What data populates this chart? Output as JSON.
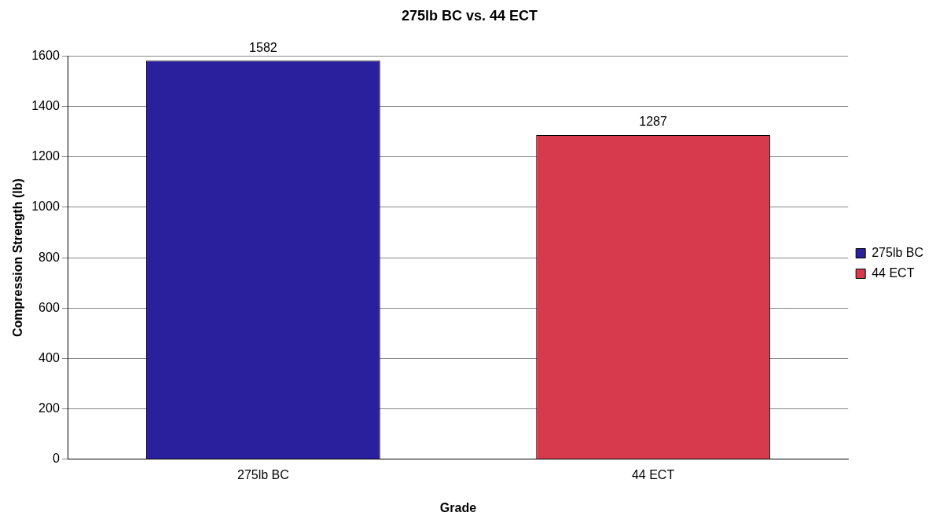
{
  "chart_data": {
    "type": "bar",
    "title": "275lb BC vs. 44 ECT",
    "xlabel": "Grade",
    "ylabel": "Compression Strength (lb)",
    "categories": [
      "275lb BC",
      "44 ECT"
    ],
    "series": [
      {
        "name": "275lb BC",
        "color": "#2a1f9c",
        "values": [
          1582,
          null
        ]
      },
      {
        "name": "44 ECT",
        "color": "#d63a4c",
        "values": [
          null,
          1287
        ]
      }
    ],
    "ylim": [
      0,
      1600
    ],
    "yticks": [
      0,
      200,
      400,
      600,
      800,
      1000,
      1200,
      1400,
      1600
    ],
    "grid": "y",
    "legend": "right",
    "data_labels": true
  }
}
